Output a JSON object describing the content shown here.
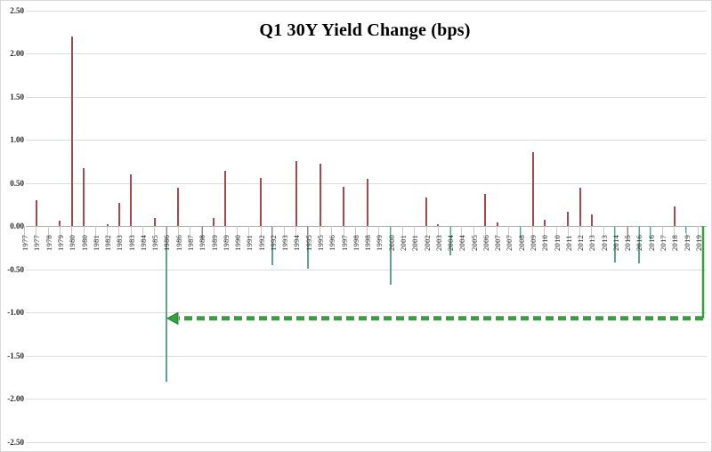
{
  "chart_data": {
    "type": "bar",
    "title": "Q1 30Y Yield Change (bps)",
    "xlabel": "",
    "ylabel": "",
    "ylim": [
      -2.5,
      2.5
    ],
    "ytick_step": 0.5,
    "ytick_labels": [
      "2.50",
      "2.00",
      "1.50",
      "1.00",
      "0.50",
      "0.00",
      "-0.50",
      "-1.00",
      "-1.50",
      "-2.00",
      "-2.50"
    ],
    "grid": "horizontal",
    "legend": "none",
    "categories": [
      "1977",
      "1977",
      "1978",
      "1979",
      "1980",
      "1980",
      "1981",
      "1982",
      "1983",
      "1983",
      "1984",
      "1985",
      "1986",
      "1986",
      "1987",
      "1988",
      "1989",
      "1989",
      "1990",
      "1991",
      "1992",
      "1992",
      "1993",
      "1994",
      "1995",
      "1995",
      "1996",
      "1997",
      "1998",
      "1998",
      "1999",
      "2000",
      "2001",
      "2001",
      "2002",
      "2003",
      "2004",
      "2004",
      "2005",
      "2006",
      "2007",
      "2007",
      "2008",
      "2009",
      "2010",
      "2010",
      "2011",
      "2012",
      "2013",
      "2013",
      "2014",
      "2015",
      "2016",
      "2016",
      "2017",
      "2018",
      "2019",
      "2019"
    ],
    "values": [
      0.0,
      0.3,
      0.0,
      0.06,
      2.2,
      0.67,
      0.0,
      0.02,
      0.27,
      0.6,
      0.0,
      0.09,
      -1.8,
      0.44,
      0.0,
      -0.15,
      0.09,
      0.64,
      0.0,
      0.0,
      0.56,
      -0.45,
      0.0,
      0.75,
      -0.49,
      0.72,
      0.0,
      0.45,
      0.0,
      0.55,
      0.0,
      -0.68,
      0.0,
      0.0,
      0.33,
      0.02,
      -0.34,
      0.0,
      0.0,
      0.37,
      0.04,
      0.0,
      -0.14,
      0.86,
      0.07,
      0.0,
      0.17,
      0.44,
      0.13,
      0.0,
      -0.42,
      -0.17,
      -0.43,
      -0.15,
      0.0,
      0.23,
      -0.08,
      0.0
    ],
    "annotation": {
      "type": "dashed-arrow",
      "from_label": "2019",
      "to_label": "1986",
      "y_value": -1.07,
      "direction": "left"
    },
    "colors": {
      "positive_bar": "#a9484d",
      "negative_bar": "#5fa38e",
      "annotation_green": "#33a13c",
      "annotation_edge": "#1e7e2e",
      "gridline": "#dcdcdc",
      "zero_line": "#b0b0b0",
      "tick": "#c9c9c9",
      "label_text": "#1f1f1f"
    }
  }
}
